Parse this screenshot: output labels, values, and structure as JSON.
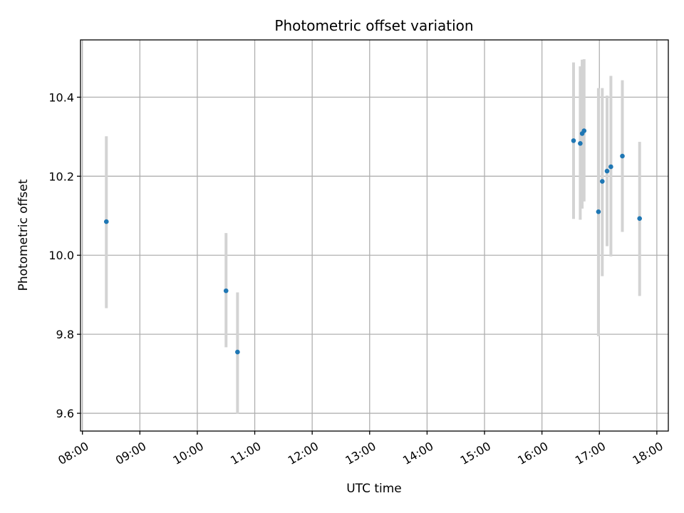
{
  "chart_data": {
    "type": "scatter",
    "title": "Photometric offset variation",
    "xlabel": "UTC time",
    "ylabel": "Photometric offset",
    "x_tick_labels": [
      "08:00",
      "09:00",
      "10:00",
      "11:00",
      "12:00",
      "13:00",
      "14:00",
      "15:00",
      "16:00",
      "17:00",
      "18:00"
    ],
    "y_tick_labels": [
      "9.6",
      "9.8",
      "10.0",
      "10.2",
      "10.4"
    ],
    "x_ticks": [
      "08:00",
      "09:00",
      "10:00",
      "11:00",
      "12:00",
      "13:00",
      "14:00",
      "15:00",
      "16:00",
      "17:00",
      "18:00"
    ],
    "y_ticks": [
      9.6,
      9.8,
      10.0,
      10.2,
      10.4
    ],
    "xlim": [
      "07:58",
      "18:12"
    ],
    "ylim": [
      9.555,
      10.545
    ],
    "grid": true,
    "colors": {
      "point": "#1f77b4",
      "errorbar": "#d3d3d3",
      "grid": "#b0b0b0",
      "axes": "#000000"
    },
    "points": [
      {
        "x": "08:25",
        "y": 10.085,
        "yerr": [
          9.866,
          10.301
        ]
      },
      {
        "x": "10:30",
        "y": 9.91,
        "yerr": [
          9.767,
          10.056
        ]
      },
      {
        "x": "10:42",
        "y": 9.755,
        "yerr": [
          9.599,
          9.906
        ]
      },
      {
        "x": "16:33",
        "y": 10.29,
        "yerr": [
          10.092,
          10.488
        ]
      },
      {
        "x": "16:40",
        "y": 10.283,
        "yerr": [
          10.09,
          10.478
        ]
      },
      {
        "x": "16:42",
        "y": 10.308,
        "yerr": [
          10.118,
          10.495
        ]
      },
      {
        "x": "16:44",
        "y": 10.315,
        "yerr": [
          10.136,
          10.496
        ]
      },
      {
        "x": "16:59",
        "y": 10.11,
        "yerr": [
          9.795,
          10.423
        ]
      },
      {
        "x": "17:03",
        "y": 10.187,
        "yerr": [
          9.947,
          10.423
        ]
      },
      {
        "x": "17:08",
        "y": 10.213,
        "yerr": [
          10.023,
          10.404
        ]
      },
      {
        "x": "17:12",
        "y": 10.224,
        "yerr": [
          9.997,
          10.454
        ]
      },
      {
        "x": "17:24",
        "y": 10.251,
        "yerr": [
          10.059,
          10.443
        ]
      },
      {
        "x": "17:42",
        "y": 10.093,
        "yerr": [
          9.897,
          10.287
        ]
      }
    ]
  }
}
